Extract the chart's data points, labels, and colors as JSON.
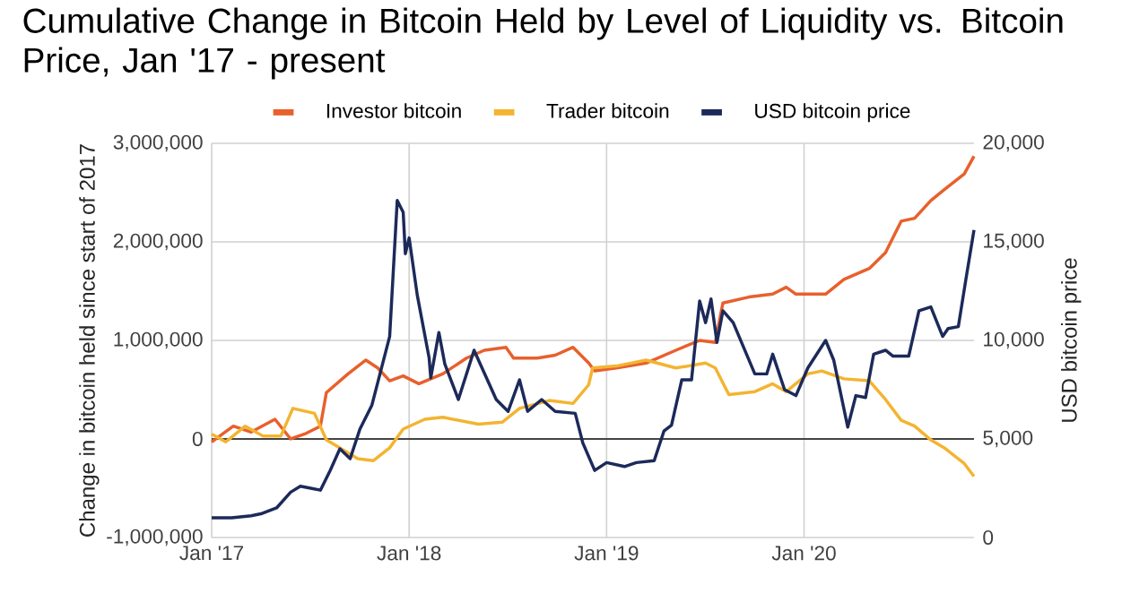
{
  "chart_data": {
    "type": "line",
    "title": "Cumulative Change in Bitcoin Held by Level of Liquidity vs. Bitcoin Price, Jan '17 - present",
    "ylabel": "Change in bitcoin held since start of 2017",
    "y2label": "USD bitcoin price",
    "xlim": [
      "2017-01-01",
      "2020-11-11"
    ],
    "xticks": [
      {
        "value": "2017-01-01",
        "label": "Jan '17"
      },
      {
        "value": "2018-01-01",
        "label": "Jan '18"
      },
      {
        "value": "2019-01-01",
        "label": "Jan '19"
      },
      {
        "value": "2020-01-01",
        "label": "Jan '20"
      }
    ],
    "ylim": [
      -1000000,
      3000000
    ],
    "yticks": [
      {
        "value": -1000000,
        "label": "-1,000,000"
      },
      0,
      {
        "value": 1000000,
        "label": "1,000,000"
      },
      {
        "value": 2000000,
        "label": "2,000,000"
      },
      {
        "value": 3000000,
        "label": "3,000,000"
      }
    ],
    "y2lim": [
      0,
      20000
    ],
    "y2ticks": [
      0,
      {
        "value": 5000,
        "label": "5,000"
      },
      {
        "value": 10000,
        "label": "10,000"
      },
      {
        "value": 15000,
        "label": "15,000"
      },
      {
        "value": 20000,
        "label": "20,000"
      }
    ],
    "grid": true,
    "legend": "top",
    "ref_lines": [
      {
        "axis": "y",
        "value": 0,
        "color": "#444444"
      }
    ],
    "series": [
      {
        "name": "Investor bitcoin",
        "color": "#e8602c",
        "x": [
          "2017-01-01",
          "2017-02-10",
          "2017-03-15",
          "2017-04-28",
          "2017-05-27",
          "2017-06-22",
          "2017-07-21",
          "2017-08-01",
          "2017-09-10",
          "2017-10-13",
          "2017-11-04",
          "2017-11-26",
          "2017-12-21",
          "2018-01-19",
          "2018-03-04",
          "2018-04-17",
          "2018-05-20",
          "2018-06-29",
          "2018-07-13",
          "2018-08-26",
          "2018-09-28",
          "2018-10-31",
          "2018-11-29",
          "2018-12-10",
          "2019-01-19",
          "2019-03-15",
          "2019-05-09",
          "2019-06-22",
          "2019-07-21",
          "2019-08-04",
          "2019-09-21",
          "2019-11-04",
          "2019-11-29",
          "2019-12-17",
          "2020-02-10",
          "2020-03-15",
          "2020-05-01",
          "2020-05-31",
          "2020-06-29",
          "2020-07-24",
          "2020-08-23",
          "2020-09-17",
          "2020-10-24",
          "2020-11-11"
        ],
        "values": [
          -30000,
          130000,
          70000,
          200000,
          0,
          50000,
          130000,
          470000,
          660000,
          800000,
          720000,
          590000,
          640000,
          560000,
          660000,
          820000,
          900000,
          930000,
          820000,
          820000,
          850000,
          930000,
          770000,
          690000,
          720000,
          770000,
          900000,
          1000000,
          980000,
          1380000,
          1440000,
          1470000,
          1540000,
          1470000,
          1470000,
          1620000,
          1730000,
          1890000,
          2210000,
          2240000,
          2420000,
          2530000,
          2690000,
          2870000
        ]
      },
      {
        "name": "Trader bitcoin",
        "color": "#f3b431",
        "x": [
          "2017-01-01",
          "2017-01-27",
          "2017-03-04",
          "2017-04-06",
          "2017-05-09",
          "2017-05-31",
          "2017-07-10",
          "2017-08-01",
          "2017-08-26",
          "2017-09-28",
          "2017-10-27",
          "2017-11-26",
          "2017-12-21",
          "2018-01-30",
          "2018-03-04",
          "2018-05-09",
          "2018-06-22",
          "2018-07-24",
          "2018-09-17",
          "2018-10-31",
          "2018-11-29",
          "2018-12-06",
          "2019-01-19",
          "2019-03-15",
          "2019-05-09",
          "2019-07-03",
          "2019-07-21",
          "2019-08-15",
          "2019-10-02",
          "2019-11-04",
          "2019-11-29",
          "2020-01-08",
          "2020-02-03",
          "2020-03-15",
          "2020-05-01",
          "2020-05-31",
          "2020-06-29",
          "2020-07-24",
          "2020-08-23",
          "2020-09-17",
          "2020-10-24",
          "2020-11-11"
        ],
        "values": [
          50000,
          -30000,
          130000,
          30000,
          30000,
          310000,
          260000,
          -10000,
          -90000,
          -200000,
          -220000,
          -90000,
          100000,
          200000,
          220000,
          150000,
          170000,
          310000,
          390000,
          360000,
          550000,
          720000,
          740000,
          800000,
          720000,
          770000,
          720000,
          450000,
          480000,
          560000,
          480000,
          660000,
          690000,
          610000,
          590000,
          400000,
          190000,
          130000,
          -10000,
          -90000,
          -250000,
          -380000
        ]
      },
      {
        "name": "USD bitcoin price",
        "color": "#1c2a5a",
        "axis": "y2",
        "x": [
          "2017-01-01",
          "2017-02-07",
          "2017-03-15",
          "2017-04-02",
          "2017-05-01",
          "2017-05-27",
          "2017-06-14",
          "2017-07-03",
          "2017-07-21",
          "2017-08-08",
          "2017-08-26",
          "2017-09-14",
          "2017-10-02",
          "2017-10-24",
          "2017-11-26",
          "2017-12-10",
          "2017-12-21",
          "2017-12-25",
          "2018-01-01",
          "2018-01-16",
          "2018-02-07",
          "2018-02-10",
          "2018-02-25",
          "2018-03-08",
          "2018-04-02",
          "2018-05-01",
          "2018-06-11",
          "2018-07-03",
          "2018-07-24",
          "2018-08-08",
          "2018-09-03",
          "2018-09-28",
          "2018-11-04",
          "2018-11-18",
          "2018-12-10",
          "2019-01-01",
          "2019-02-03",
          "2019-02-25",
          "2019-03-30",
          "2019-04-17",
          "2019-05-01",
          "2019-05-20",
          "2019-06-07",
          "2019-06-22",
          "2019-07-03",
          "2019-07-13",
          "2019-07-24",
          "2019-08-04",
          "2019-08-23",
          "2019-10-02",
          "2019-10-24",
          "2019-11-04",
          "2019-11-26",
          "2019-12-17",
          "2020-01-08",
          "2020-02-10",
          "2020-02-25",
          "2020-03-22",
          "2020-04-06",
          "2020-04-24",
          "2020-05-09",
          "2020-05-31",
          "2020-06-14",
          "2020-07-13",
          "2020-08-01",
          "2020-08-23",
          "2020-09-14",
          "2020-09-24",
          "2020-10-13",
          "2020-10-27",
          "2020-11-11"
        ],
        "values": [
          1000,
          1000,
          1100,
          1200,
          1500,
          2300,
          2600,
          2500,
          2400,
          3400,
          4500,
          4000,
          5500,
          6700,
          10200,
          17100,
          16500,
          14400,
          15200,
          12300,
          9100,
          8100,
          10400,
          8800,
          7000,
          9500,
          7000,
          6400,
          8000,
          6400,
          7000,
          6400,
          6300,
          4800,
          3400,
          3800,
          3600,
          3800,
          3900,
          5400,
          5700,
          8000,
          8000,
          12000,
          10900,
          12100,
          9900,
          11500,
          10900,
          8300,
          8300,
          9300,
          7500,
          7200,
          8600,
          10000,
          9000,
          5600,
          7200,
          7100,
          9300,
          9500,
          9200,
          9200,
          11500,
          11700,
          10200,
          10600,
          10700,
          13100,
          15600
        ]
      }
    ]
  }
}
